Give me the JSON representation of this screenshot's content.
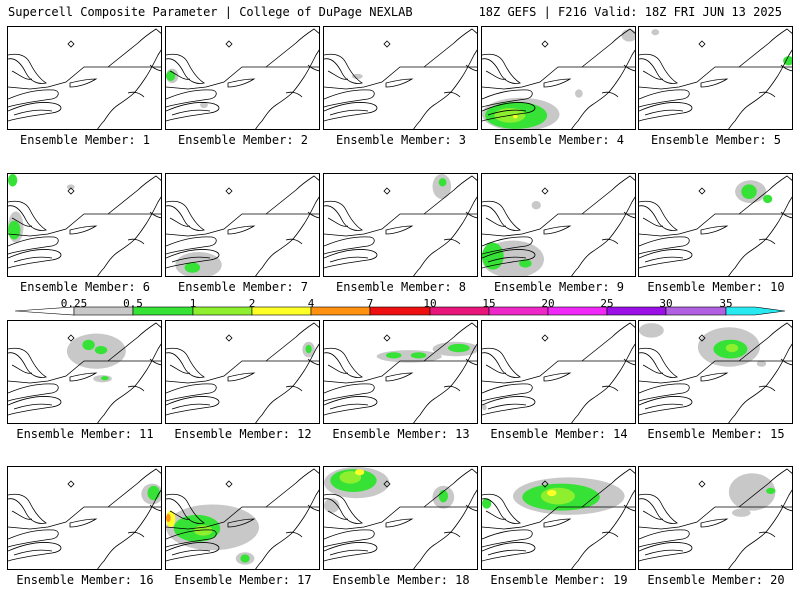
{
  "header": {
    "left": "Supercell Composite Parameter | College of DuPage NEXLAB",
    "right": "18Z GEFS | F216 Valid: 18Z FRI JUN 13 2025"
  },
  "panel_label_prefix": "Ensemble Member: ",
  "members": [
    "1",
    "2",
    "3",
    "4",
    "5",
    "6",
    "7",
    "8",
    "9",
    "10",
    "11",
    "12",
    "13",
    "14",
    "15",
    "16",
    "17",
    "18",
    "19",
    "20"
  ],
  "colorbar": {
    "labels": [
      "0.25",
      "0.5",
      "1",
      "2",
      "4",
      "7",
      "10",
      "15",
      "20",
      "25",
      "30",
      "35"
    ],
    "colors": [
      "#c8c8c8",
      "#36e236",
      "#8eef2e",
      "#ffff28",
      "#ff9010",
      "#ee1010",
      "#e8157a",
      "#ee28c8",
      "#f028f8",
      "#9b10e6",
      "#b060e0",
      "#28e8f0"
    ]
  }
}
